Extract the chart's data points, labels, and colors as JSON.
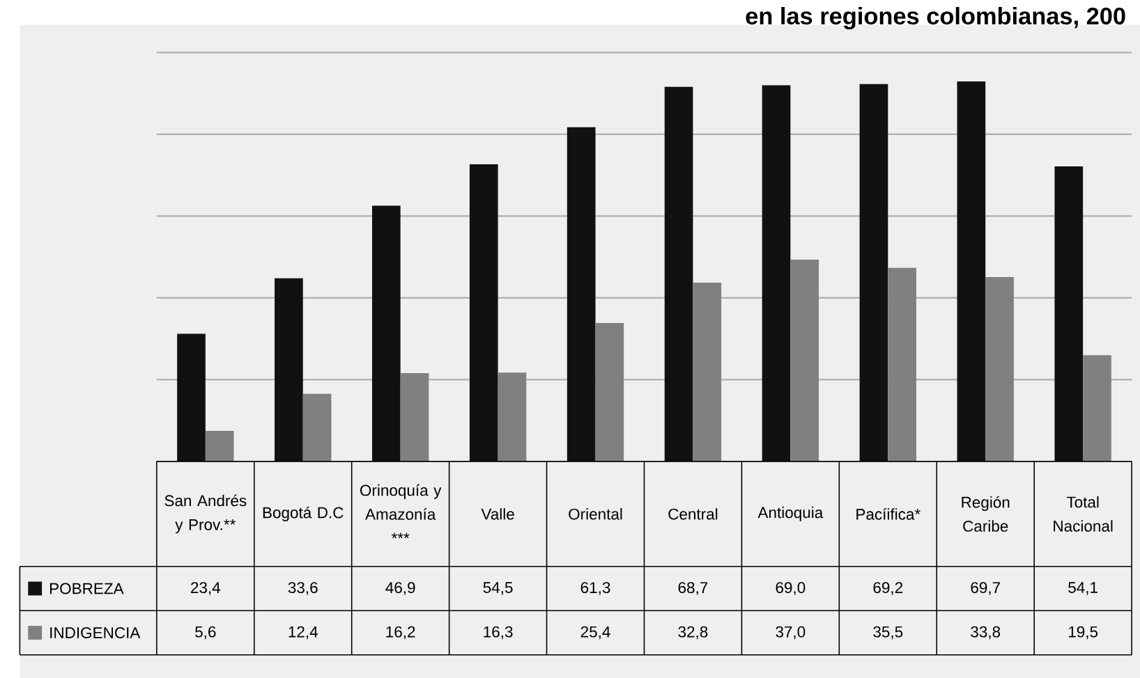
{
  "chart_data": {
    "type": "bar",
    "title": "en las regiones colombianas, 200",
    "categories": [
      "San Andrés y Prov.**",
      "Bogotá D.C",
      "Orinoquía y Amazonía ***",
      "Valle",
      "Oriental",
      "Central",
      "Antioquia",
      "Pacíifica*",
      "Región Caribe",
      "Total Nacional"
    ],
    "series": [
      {
        "name": "POBREZA",
        "color": "#111111",
        "values": [
          23.4,
          33.6,
          46.9,
          54.5,
          61.3,
          68.7,
          69.0,
          69.2,
          69.7,
          54.1
        ],
        "value_labels": [
          "23,4",
          "33,6",
          "46,9",
          "54,5",
          "61,3",
          "68,7",
          "69,0",
          "69,2",
          "69,7",
          "54,1"
        ]
      },
      {
        "name": "INDIGENCIA",
        "color": "#808080",
        "values": [
          5.6,
          12.4,
          16.2,
          16.3,
          25.4,
          32.8,
          37.0,
          35.5,
          33.8,
          19.5
        ],
        "value_labels": [
          "5,6",
          "12,4",
          "16,2",
          "16,3",
          "25,4",
          "32,8",
          "37,0",
          "35,5",
          "33,8",
          "19,5"
        ]
      }
    ],
    "ylim": [
      0,
      75
    ],
    "yticks": [
      {
        "value": 15,
        "label": null
      },
      {
        "value": 30,
        "label": null
      },
      {
        "value": 45,
        "label": null
      },
      {
        "value": 60,
        "label": null
      },
      {
        "value": 75,
        "label": null
      }
    ],
    "grid": "y",
    "tick_labels": false,
    "legend": "bottom left"
  }
}
